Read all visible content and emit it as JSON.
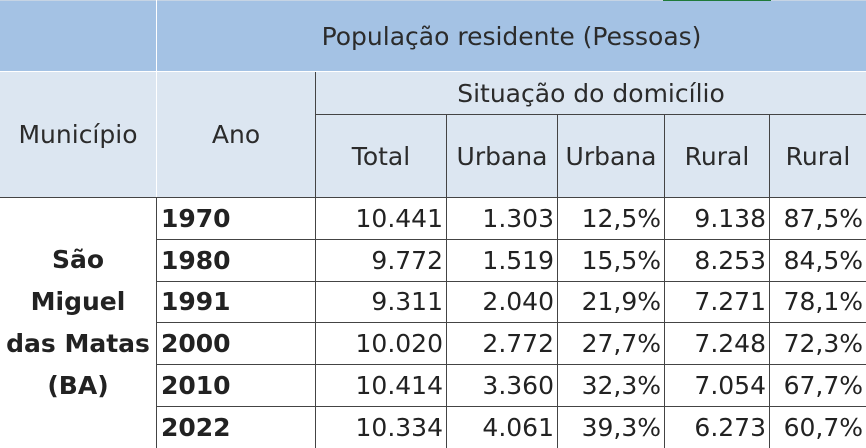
{
  "table": {
    "title": "População residente (Pessoas)",
    "headers": {
      "municipio": "Município",
      "ano": "Ano",
      "situacao": "Situação do domicílio",
      "total": "Total",
      "urbana": "Urbana",
      "urbana_pct": "Urbana",
      "rural": "Rural",
      "rural_pct": "Rural"
    },
    "municipality": "São Miguel das Matas (BA)",
    "rows": [
      {
        "ano": "1970",
        "total": "10.441",
        "urbana": "1.303",
        "urbana_pct": "12,5%",
        "rural": "9.138",
        "rural_pct": "87,5%"
      },
      {
        "ano": "1980",
        "total": "9.772",
        "urbana": "1.519",
        "urbana_pct": "15,5%",
        "rural": "8.253",
        "rural_pct": "84,5%"
      },
      {
        "ano": "1991",
        "total": "9.311",
        "urbana": "2.040",
        "urbana_pct": "21,9%",
        "rural": "7.271",
        "rural_pct": "78,1%"
      },
      {
        "ano": "2000",
        "total": "10.020",
        "urbana": "2.772",
        "urbana_pct": "27,7%",
        "rural": "7.248",
        "rural_pct": "72,3%"
      },
      {
        "ano": "2010",
        "total": "10.414",
        "urbana": "3.360",
        "urbana_pct": "32,3%",
        "rural": "7.054",
        "rural_pct": "67,7%"
      },
      {
        "ano": "2022",
        "total": "10.334",
        "urbana": "4.061",
        "urbana_pct": "39,3%",
        "rural": "6.273",
        "rural_pct": "60,7%"
      }
    ]
  },
  "colors": {
    "title_fill": "#a4c2e4",
    "header_fill": "#dce6f1",
    "grid": "#444444",
    "accent": "#1f7a3a"
  }
}
